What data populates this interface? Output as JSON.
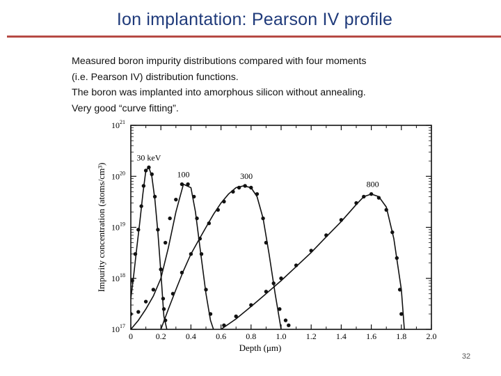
{
  "slide": {
    "title": "Ion implantation: Pearson IV profile",
    "body_lines": [
      "Measured boron impurity distributions compared with four moments",
      "(i.e. Pearson IV) distribution functions.",
      "The boron was implanted into amorphous silicon without annealing.",
      "Very good “curve fitting”."
    ],
    "page_number": "32"
  },
  "chart_data": {
    "type": "scatter",
    "title": "",
    "xlabel": "Depth (μm)",
    "ylabel": "Impurity concentration (atoms/cm³)",
    "x_ticks": [
      "0",
      "0.2",
      "0.4",
      "0.6",
      "0.8",
      "1.0",
      "1.2",
      "1.4",
      "1.6",
      "1.8",
      "2.0"
    ],
    "y_ticks": [
      {
        "value": 1e+17,
        "base": "10",
        "exp": "17"
      },
      {
        "value": 1e+18,
        "base": "10",
        "exp": "18"
      },
      {
        "value": 1e+19,
        "base": "10",
        "exp": "19"
      },
      {
        "value": 1e+20,
        "base": "10",
        "exp": "20"
      },
      {
        "value": 1e+21,
        "base": "10",
        "exp": "21"
      }
    ],
    "xlim": [
      0,
      2.0
    ],
    "ylim": [
      1e+17,
      1e+21
    ],
    "y_scale": "log",
    "grid": false,
    "series": [
      {
        "name": "30 keV",
        "fit_line": [
          [
            0.0,
            4e+17
          ],
          [
            0.02,
            1.2e+18
          ],
          [
            0.04,
            4e+18
          ],
          [
            0.06,
            1.3e+19
          ],
          [
            0.08,
            4.5e+19
          ],
          [
            0.1,
            1.3e+20
          ],
          [
            0.12,
            1.5e+20
          ],
          [
            0.14,
            1e+20
          ],
          [
            0.16,
            3.5e+19
          ],
          [
            0.18,
            8e+18
          ],
          [
            0.2,
            1.3e+18
          ],
          [
            0.22,
            1.8e+17
          ],
          [
            0.24,
            1e+17
          ]
        ],
        "points": [
          [
            0.01,
            9e+17
          ],
          [
            0.03,
            3e+18
          ],
          [
            0.05,
            9e+18
          ],
          [
            0.07,
            2.6e+19
          ],
          [
            0.085,
            6.5e+19
          ],
          [
            0.1,
            1.3e+20
          ],
          [
            0.12,
            1.5e+20
          ],
          [
            0.14,
            1.1e+20
          ],
          [
            0.16,
            4e+19
          ],
          [
            0.18,
            9e+18
          ],
          [
            0.2,
            1.5e+18
          ],
          [
            0.215,
            4e+17
          ],
          [
            0.23,
            1.5e+17
          ]
        ],
        "label": "30 keV"
      },
      {
        "name": "100",
        "fit_line": [
          [
            0.0,
            1e+17
          ],
          [
            0.05,
            1.5e+17
          ],
          [
            0.1,
            2.5e+17
          ],
          [
            0.15,
            4.5e+17
          ],
          [
            0.2,
            1e+18
          ],
          [
            0.25,
            4e+18
          ],
          [
            0.3,
            2e+19
          ],
          [
            0.35,
            7e+19
          ],
          [
            0.4,
            6e+19
          ],
          [
            0.43,
            2e+19
          ],
          [
            0.46,
            4e+18
          ],
          [
            0.5,
            5e+17
          ],
          [
            0.53,
            1.5e+17
          ],
          [
            0.55,
            1e+17
          ]
        ],
        "points": [
          [
            0.0,
            2e+17
          ],
          [
            0.05,
            2.2e+17
          ],
          [
            0.1,
            3.5e+17
          ],
          [
            0.15,
            6e+17
          ],
          [
            0.2,
            1.5e+18
          ],
          [
            0.23,
            5e+18
          ],
          [
            0.26,
            1.5e+19
          ],
          [
            0.3,
            3.5e+19
          ],
          [
            0.34,
            7e+19
          ],
          [
            0.38,
            7e+19
          ],
          [
            0.42,
            4e+19
          ],
          [
            0.44,
            1.5e+19
          ],
          [
            0.47,
            3e+18
          ],
          [
            0.5,
            6e+17
          ],
          [
            0.53,
            2e+17
          ]
        ],
        "label": "100"
      },
      {
        "name": "300",
        "fit_line": [
          [
            0.2,
            1e+17
          ],
          [
            0.25,
            2.5e+17
          ],
          [
            0.3,
            6e+17
          ],
          [
            0.35,
            1.4e+18
          ],
          [
            0.4,
            3e+18
          ],
          [
            0.45,
            5.5e+18
          ],
          [
            0.5,
            1e+19
          ],
          [
            0.55,
            1.8e+19
          ],
          [
            0.6,
            3e+19
          ],
          [
            0.65,
            4.5e+19
          ],
          [
            0.7,
            6e+19
          ],
          [
            0.75,
            6.5e+19
          ],
          [
            0.8,
            6e+19
          ],
          [
            0.84,
            4e+19
          ],
          [
            0.88,
            1.5e+19
          ],
          [
            0.92,
            3e+18
          ],
          [
            0.96,
            5e+17
          ],
          [
            1.0,
            1e+17
          ]
        ],
        "points": [
          [
            0.22,
            2.5e+17
          ],
          [
            0.28,
            5e+17
          ],
          [
            0.34,
            1.3e+18
          ],
          [
            0.4,
            3e+18
          ],
          [
            0.46,
            6e+18
          ],
          [
            0.52,
            1.2e+19
          ],
          [
            0.58,
            2.2e+19
          ],
          [
            0.62,
            3.2e+19
          ],
          [
            0.68,
            5e+19
          ],
          [
            0.72,
            6e+19
          ],
          [
            0.76,
            6.5e+19
          ],
          [
            0.8,
            6e+19
          ],
          [
            0.84,
            4.5e+19
          ],
          [
            0.88,
            1.5e+19
          ],
          [
            0.9,
            5e+18
          ],
          [
            0.95,
            8e+17
          ],
          [
            0.99,
            2.5e+17
          ],
          [
            1.03,
            1.5e+17
          ],
          [
            1.05,
            1.2e+17
          ]
        ],
        "label": "300"
      },
      {
        "name": "800",
        "fit_line": [
          [
            0.6,
            1e+17
          ],
          [
            0.7,
            1.6e+17
          ],
          [
            0.8,
            2.8e+17
          ],
          [
            0.9,
            5e+17
          ],
          [
            1.0,
            9e+17
          ],
          [
            1.1,
            1.7e+18
          ],
          [
            1.2,
            3.2e+18
          ],
          [
            1.3,
            6.5e+18
          ],
          [
            1.4,
            1.3e+19
          ],
          [
            1.5,
            2.8e+19
          ],
          [
            1.55,
            4e+19
          ],
          [
            1.6,
            4.5e+19
          ],
          [
            1.65,
            4e+19
          ],
          [
            1.7,
            2.5e+19
          ],
          [
            1.75,
            6e+18
          ],
          [
            1.8,
            6e+17
          ],
          [
            1.82,
            1e+17
          ]
        ],
        "points": [
          [
            0.62,
            1.2e+17
          ],
          [
            0.7,
            1.8e+17
          ],
          [
            0.8,
            3e+17
          ],
          [
            0.9,
            5.5e+17
          ],
          [
            1.0,
            1e+18
          ],
          [
            1.1,
            1.8e+18
          ],
          [
            1.2,
            3.5e+18
          ],
          [
            1.3,
            7e+18
          ],
          [
            1.4,
            1.4e+19
          ],
          [
            1.5,
            3e+19
          ],
          [
            1.55,
            4e+19
          ],
          [
            1.6,
            4.5e+19
          ],
          [
            1.65,
            3.8e+19
          ],
          [
            1.7,
            2.2e+19
          ],
          [
            1.74,
            8e+18
          ],
          [
            1.77,
            2.5e+18
          ],
          [
            1.79,
            6e+17
          ],
          [
            1.8,
            2e+17
          ]
        ],
        "label": "800"
      }
    ]
  }
}
